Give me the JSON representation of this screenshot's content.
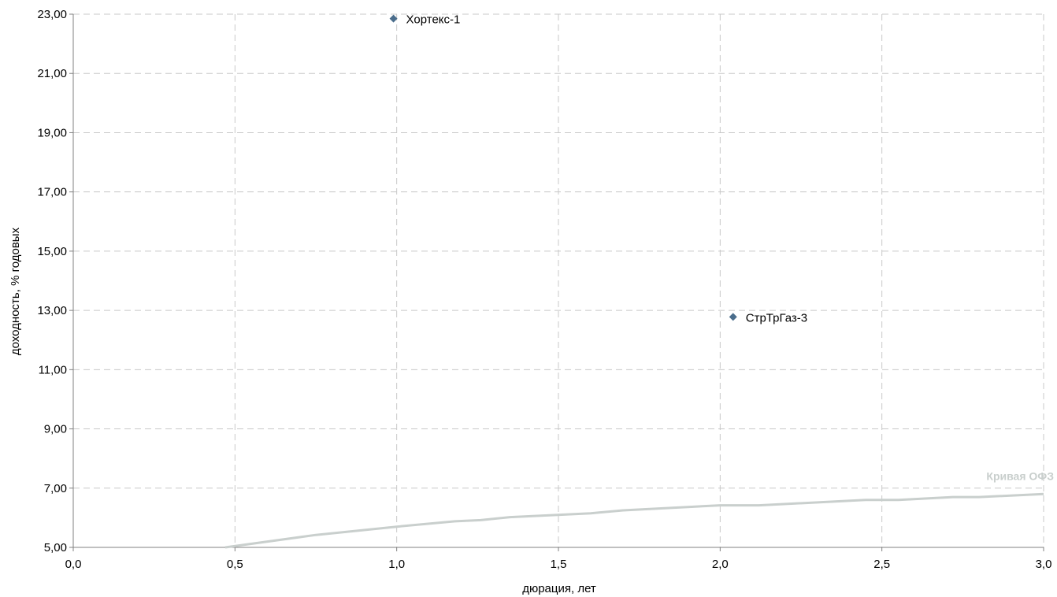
{
  "chart_data": {
    "type": "scatter",
    "title": "",
    "xlabel": "дюрация, лет",
    "ylabel": "доходность, % годовых",
    "xlim": [
      0,
      3
    ],
    "ylim": [
      5,
      23
    ],
    "x_ticks": [
      0,
      0.5,
      1,
      1.5,
      2,
      2.5,
      3
    ],
    "x_tick_labels": [
      "0,0",
      "0,5",
      "1,0",
      "1,5",
      "2,0",
      "2,5",
      "3,0"
    ],
    "y_ticks": [
      5,
      7,
      9,
      11,
      13,
      15,
      17,
      19,
      21,
      23
    ],
    "y_tick_labels": [
      "5,00",
      "7,00",
      "9,00",
      "11,00",
      "13,00",
      "15,00",
      "17,00",
      "19,00",
      "21,00",
      "23,00"
    ],
    "grid": true,
    "points": [
      {
        "label": "Хортекс-1",
        "x": 0.99,
        "y": 22.85
      },
      {
        "label": "СтрТрГаз-3",
        "x": 2.04,
        "y": 12.78
      }
    ],
    "curve": {
      "name": "Кривая ОФЗ",
      "color": "#c9cfcd",
      "x": [
        0.47,
        0.75,
        1.0,
        1.18,
        1.26,
        1.35,
        1.6,
        1.7,
        2.0,
        2.12,
        2.45,
        2.55,
        2.72,
        2.8,
        3.0
      ],
      "y": [
        5.0,
        5.42,
        5.7,
        5.88,
        5.92,
        6.02,
        6.15,
        6.25,
        6.42,
        6.42,
        6.6,
        6.6,
        6.7,
        6.7,
        6.8
      ]
    },
    "point_color": "#4a6d8c"
  }
}
